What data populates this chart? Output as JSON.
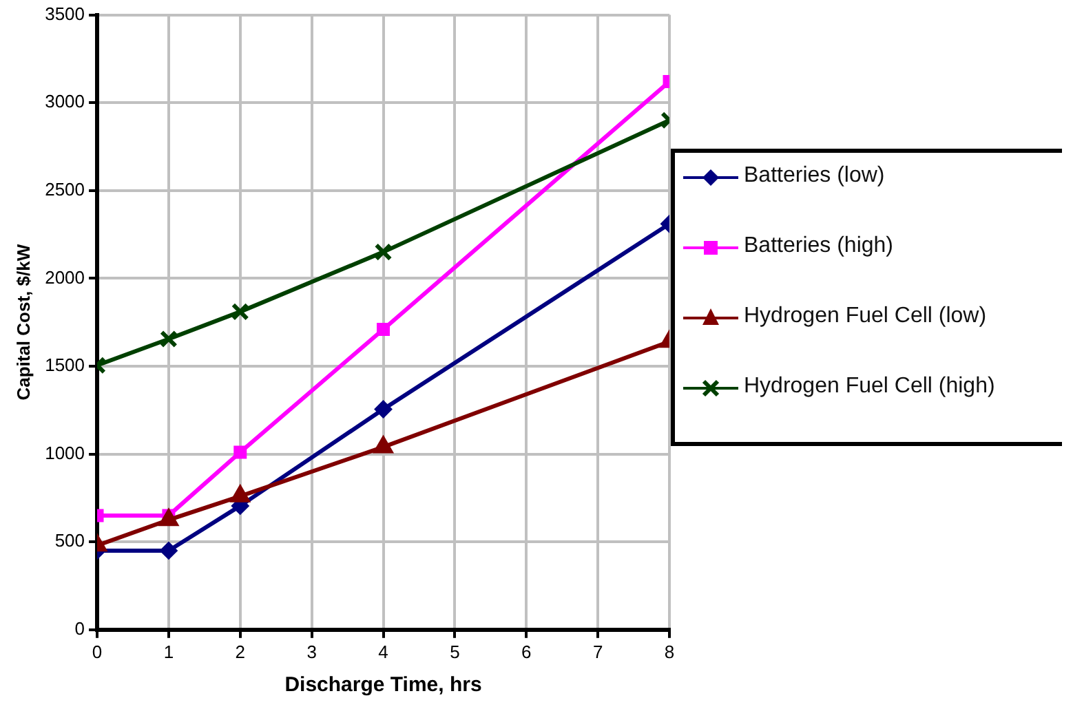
{
  "chart_data": {
    "type": "line",
    "xlabel": "Discharge Time, hrs",
    "ylabel": "Capital Cost, $/kW",
    "x": [
      0,
      1,
      2,
      4,
      8
    ],
    "series": [
      {
        "name": "Batteries (low)",
        "color": "#000080",
        "marker": "diamond",
        "values": [
          450,
          450,
          705,
          1255,
          2310
        ]
      },
      {
        "name": "Batteries (high)",
        "color": "#ff00ff",
        "marker": "square",
        "values": [
          650,
          650,
          1010,
          1710,
          3120
        ]
      },
      {
        "name": "Hydrogen Fuel Cell (low)",
        "color": "#800000",
        "marker": "triangle",
        "values": [
          480,
          625,
          760,
          1040,
          1640
        ]
      },
      {
        "name": "Hydrogen Fuel Cell (high)",
        "color": "#004000",
        "marker": "cross",
        "values": [
          1505,
          1655,
          1810,
          2150,
          2900
        ]
      }
    ],
    "xlim": [
      0,
      8
    ],
    "xticks": [
      0,
      1,
      2,
      3,
      4,
      5,
      6,
      7,
      8
    ],
    "ylim": [
      0,
      3500
    ],
    "yticks": [
      0,
      500,
      1000,
      1500,
      2000,
      2500,
      3000,
      3500
    ],
    "grid": true,
    "legend": "right",
    "line_style": "solid"
  }
}
